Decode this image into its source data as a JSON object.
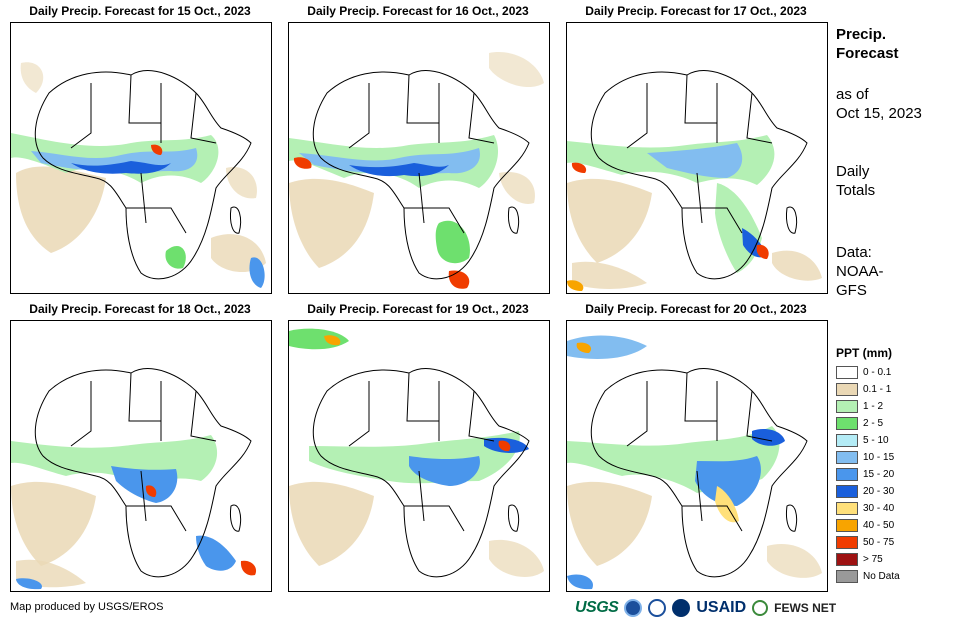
{
  "panels": [
    {
      "title": "Daily Precip. Forecast for 15 Oct., 2023"
    },
    {
      "title": "Daily Precip. Forecast for 16 Oct., 2023"
    },
    {
      "title": "Daily Precip. Forecast for 17 Oct., 2023"
    },
    {
      "title": "Daily Precip. Forecast for 18 Oct., 2023"
    },
    {
      "title": "Daily Precip. Forecast for 19 Oct., 2023"
    },
    {
      "title": "Daily Precip. Forecast for 20 Oct., 2023"
    }
  ],
  "sidebar": {
    "title_line1": "Precip.",
    "title_line2": "Forecast",
    "asof_line1": "as of",
    "asof_line2": "Oct 15, 2023",
    "daily_line1": "Daily",
    "daily_line2": "Totals",
    "data_line1": "Data:",
    "data_line2": "NOAA-",
    "data_line3": "GFS"
  },
  "legend": {
    "title": "PPT (mm)",
    "items": [
      {
        "label": "0 - 0.1",
        "color": "#ffffff"
      },
      {
        "label": "0.1 - 1",
        "color": "#ead8b5"
      },
      {
        "label": "1 - 2",
        "color": "#b4f0b4"
      },
      {
        "label": "2 - 5",
        "color": "#6ee06e"
      },
      {
        "label": "5 - 10",
        "color": "#b4ecf6"
      },
      {
        "label": "10 - 15",
        "color": "#82bdf0"
      },
      {
        "label": "15 - 20",
        "color": "#4a96ec"
      },
      {
        "label": "20 - 30",
        "color": "#1a5fdc"
      },
      {
        "label": "30 - 40",
        "color": "#ffe07a"
      },
      {
        "label": "40 - 50",
        "color": "#f8a400"
      },
      {
        "label": "50 - 75",
        "color": "#f03c00"
      },
      {
        "label": "> 75",
        "color": "#9e1212"
      },
      {
        "label": "No Data",
        "color": "#999999"
      }
    ]
  },
  "footer": {
    "credit": "Map produced by USGS/EROS",
    "logos": {
      "usgs": "USGS",
      "usaid": "USAID",
      "fews": "FEWS NET"
    }
  }
}
